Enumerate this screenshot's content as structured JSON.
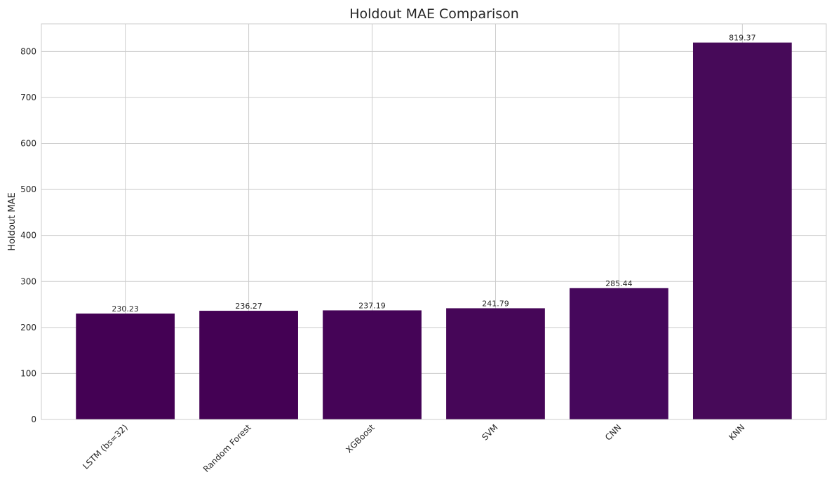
{
  "chart_data": {
    "type": "bar",
    "title": "Holdout MAE Comparison",
    "xlabel": "",
    "ylabel": "Holdout MAE",
    "categories": [
      "LSTM (bs=32)",
      "Random Forest",
      "XGBoost",
      "SVM",
      "CNN",
      "KNN"
    ],
    "values": [
      230.23,
      236.27,
      237.19,
      241.79,
      285.44,
      819.37
    ],
    "data_labels": [
      "230.23",
      "236.27",
      "237.19",
      "241.79",
      "285.44",
      "819.37"
    ],
    "bar_colors": [
      "#440154",
      "#440154",
      "#450457",
      "#460658",
      "#46085c",
      "#470a59"
    ],
    "ylim": [
      0,
      860
    ],
    "yticks": [
      0,
      100,
      200,
      300,
      400,
      500,
      600,
      700,
      800
    ],
    "xtick_rotation_deg": 45,
    "grid": true,
    "legend": "none"
  }
}
